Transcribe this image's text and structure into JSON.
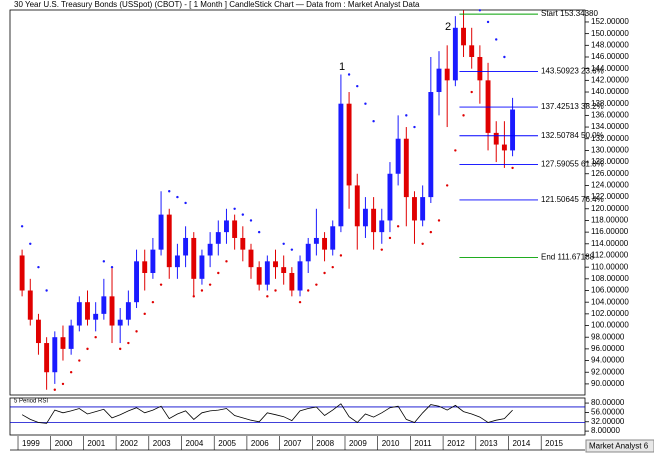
{
  "chart_data": {
    "type": "candlestick",
    "title": "30 Year U.S. Treasury Bonds (USSpot) (CBOT) - [ 1 Month ] CandleStick Chart — Data from : Market Analyst Data",
    "annotations": [
      "1",
      "2"
    ],
    "brand": "Market Analyst 6",
    "up_color": "#1a1aff",
    "down_color": "#e00000",
    "xlim": [
      1998.755,
      2016.34
    ],
    "xticks": [
      1999,
      2000,
      2001,
      2002,
      2003,
      2004,
      2005,
      2006,
      2007,
      2008,
      2009,
      2010,
      2011,
      2012,
      2013,
      2014,
      2015
    ],
    "ylim": [
      88.1,
      154.05
    ],
    "yticks": [
      {
        "value": 90,
        "label": "90.00000"
      },
      {
        "value": 92,
        "label": "92.00000"
      },
      {
        "value": 94,
        "label": "94.00000"
      },
      {
        "value": 96,
        "label": "96.00000"
      },
      {
        "value": 98,
        "label": "98.00000"
      },
      {
        "value": 100,
        "label": "100.00000"
      },
      {
        "value": 102,
        "label": "102.00000"
      },
      {
        "value": 104,
        "label": "104.00000"
      },
      {
        "value": 106,
        "label": "106.00000"
      },
      {
        "value": 108,
        "label": "108.00000"
      },
      {
        "value": 110,
        "label": "110.00000"
      },
      {
        "value": 112,
        "label": "112.00000"
      },
      {
        "value": 114,
        "label": "114.00000"
      },
      {
        "value": 116,
        "label": "116.00000"
      },
      {
        "value": 118,
        "label": "118.00000"
      },
      {
        "value": 120,
        "label": "120.00000"
      },
      {
        "value": 122,
        "label": "122.00000"
      },
      {
        "value": 124,
        "label": "124.00000"
      },
      {
        "value": 126,
        "label": "126.00000"
      },
      {
        "value": 128,
        "label": "128.00000"
      },
      {
        "value": 130,
        "label": "130.00000"
      },
      {
        "value": 132,
        "label": "132.00000"
      },
      {
        "value": 134,
        "label": "134.00000"
      },
      {
        "value": 136,
        "label": "136.00000"
      },
      {
        "value": 138,
        "label": "138.00000"
      },
      {
        "value": 140,
        "label": "140.00000"
      },
      {
        "value": 142,
        "label": "142.00000"
      },
      {
        "value": 144,
        "label": "144.00000"
      },
      {
        "value": 146,
        "label": "146.00000"
      },
      {
        "value": 148,
        "label": "148.00000"
      },
      {
        "value": 150,
        "label": "150.00000"
      },
      {
        "value": 152,
        "label": "152.00000"
      }
    ],
    "x": [
      1999,
      1999.25,
      1999.5,
      1999.75,
      2000,
      2000.25,
      2000.5,
      2000.75,
      2001,
      2001.25,
      2001.5,
      2001.75,
      2002,
      2002.25,
      2002.5,
      2002.75,
      2003,
      2003.25,
      2003.5,
      2003.75,
      2004,
      2004.25,
      2004.5,
      2004.75,
      2005,
      2005.25,
      2005.5,
      2005.75,
      2006,
      2006.25,
      2006.5,
      2006.75,
      2007,
      2007.25,
      2007.5,
      2007.75,
      2008,
      2008.25,
      2008.5,
      2008.75,
      2009,
      2009.25,
      2009.5,
      2009.75,
      2010,
      2010.25,
      2010.5,
      2010.75,
      2011,
      2011.25,
      2011.5,
      2011.75,
      2012,
      2012.25,
      2012.5,
      2012.75,
      2013,
      2013.25,
      2013.5,
      2013.75,
      2014
    ],
    "open": [
      112,
      106,
      101,
      97,
      92,
      98,
      96,
      100,
      104,
      101,
      102,
      105,
      100,
      101,
      104,
      111,
      109,
      113,
      119,
      110,
      112,
      115,
      108,
      112,
      114,
      116,
      118,
      115,
      113,
      110,
      107,
      111,
      110,
      109,
      106,
      111,
      114,
      115,
      113,
      117,
      138,
      124,
      117,
      120,
      116,
      118,
      126,
      132,
      122,
      118,
      122,
      140,
      144,
      142,
      151,
      148,
      146,
      142,
      133,
      131,
      130
    ],
    "high": [
      113,
      108,
      102,
      98,
      99,
      100,
      101,
      105,
      106,
      104,
      108,
      110,
      103,
      106,
      113,
      113,
      115,
      123,
      120,
      114,
      117,
      116,
      113,
      116,
      118,
      120,
      119,
      117,
      114,
      111,
      112,
      113,
      112,
      110,
      112,
      115,
      120,
      116,
      118,
      143,
      140,
      126,
      122,
      122,
      120,
      128,
      136,
      134,
      123,
      124,
      146,
      147,
      148,
      153,
      154,
      151,
      148,
      145,
      135,
      135,
      139
    ],
    "low": [
      105,
      100,
      95,
      89,
      90,
      94,
      95,
      99,
      100,
      99,
      101,
      97,
      97,
      100,
      103,
      106,
      108,
      112,
      108,
      108,
      110,
      105,
      107,
      110,
      112,
      114,
      113,
      111,
      108,
      106,
      106,
      108,
      107,
      105,
      105,
      109,
      112,
      111,
      112,
      116,
      120,
      113,
      115,
      113,
      114,
      116,
      124,
      117,
      114,
      117,
      121,
      136,
      134,
      141,
      146,
      144,
      138,
      130,
      128,
      127,
      129
    ],
    "close": [
      106,
      101,
      97,
      92,
      98,
      96,
      100,
      104,
      101,
      102,
      105,
      100,
      101,
      104,
      111,
      109,
      113,
      119,
      110,
      112,
      115,
      108,
      112,
      114,
      116,
      118,
      115,
      113,
      110,
      107,
      111,
      110,
      109,
      106,
      111,
      114,
      115,
      113,
      117,
      138,
      124,
      117,
      120,
      116,
      118,
      126,
      132,
      122,
      118,
      122,
      140,
      144,
      142,
      151,
      148,
      146,
      142,
      133,
      131,
      130,
      137
    ],
    "sar": [
      117,
      114,
      110,
      106,
      89,
      90,
      92,
      94,
      96,
      98,
      111,
      110,
      96,
      97,
      99,
      102,
      104,
      107,
      123,
      122,
      121,
      105,
      106,
      107,
      109,
      111,
      120,
      119,
      118,
      116,
      105,
      106,
      114,
      113,
      104,
      106,
      107,
      109,
      110,
      112,
      143,
      141,
      138,
      135,
      113,
      115,
      117,
      136,
      134,
      114,
      116,
      118,
      124,
      130,
      136,
      140,
      154,
      152,
      149,
      146,
      127
    ],
    "retracements": [
      {
        "value": 153.3438,
        "label": "Start 153.34380",
        "color": "#00a000"
      },
      {
        "value": 143.50923,
        "label": "143.50923 23.6%",
        "color": "#0000ff"
      },
      {
        "value": 137.42513,
        "label": "137.42513 38.2%",
        "color": "#0000ff"
      },
      {
        "value": 132.50784,
        "label": "132.50784 50.0%",
        "color": "#0000ff"
      },
      {
        "value": 127.59055,
        "label": "127.59055 61.8%",
        "color": "#0000ff"
      },
      {
        "value": 121.50645,
        "label": "121.50645 76.4%",
        "color": "#0000ff"
      },
      {
        "value": 111.67188,
        "label": "End 111.67188",
        "color": "#00a000"
      }
    ],
    "rsi": {
      "title": "5 Period RSI",
      "ylim": [
        -2,
        93
      ],
      "yticks": [
        {
          "value": 80,
          "label": "80.00000"
        },
        {
          "value": 56,
          "label": "56.00000"
        },
        {
          "value": 32,
          "label": "32.00000"
        },
        {
          "value": 8,
          "label": "8.00000"
        }
      ],
      "levels": [
        70,
        30
      ],
      "values": [
        50,
        38,
        30,
        28,
        62,
        55,
        60,
        66,
        52,
        58,
        64,
        42,
        50,
        60,
        68,
        55,
        62,
        72,
        40,
        52,
        60,
        38,
        55,
        60,
        62,
        66,
        48,
        42,
        36,
        32,
        55,
        50,
        45,
        35,
        60,
        66,
        70,
        48,
        62,
        78,
        45,
        30,
        52,
        44,
        55,
        68,
        72,
        38,
        30,
        55,
        76,
        72,
        62,
        74,
        58,
        52,
        44,
        30,
        36,
        40,
        62
      ]
    }
  }
}
